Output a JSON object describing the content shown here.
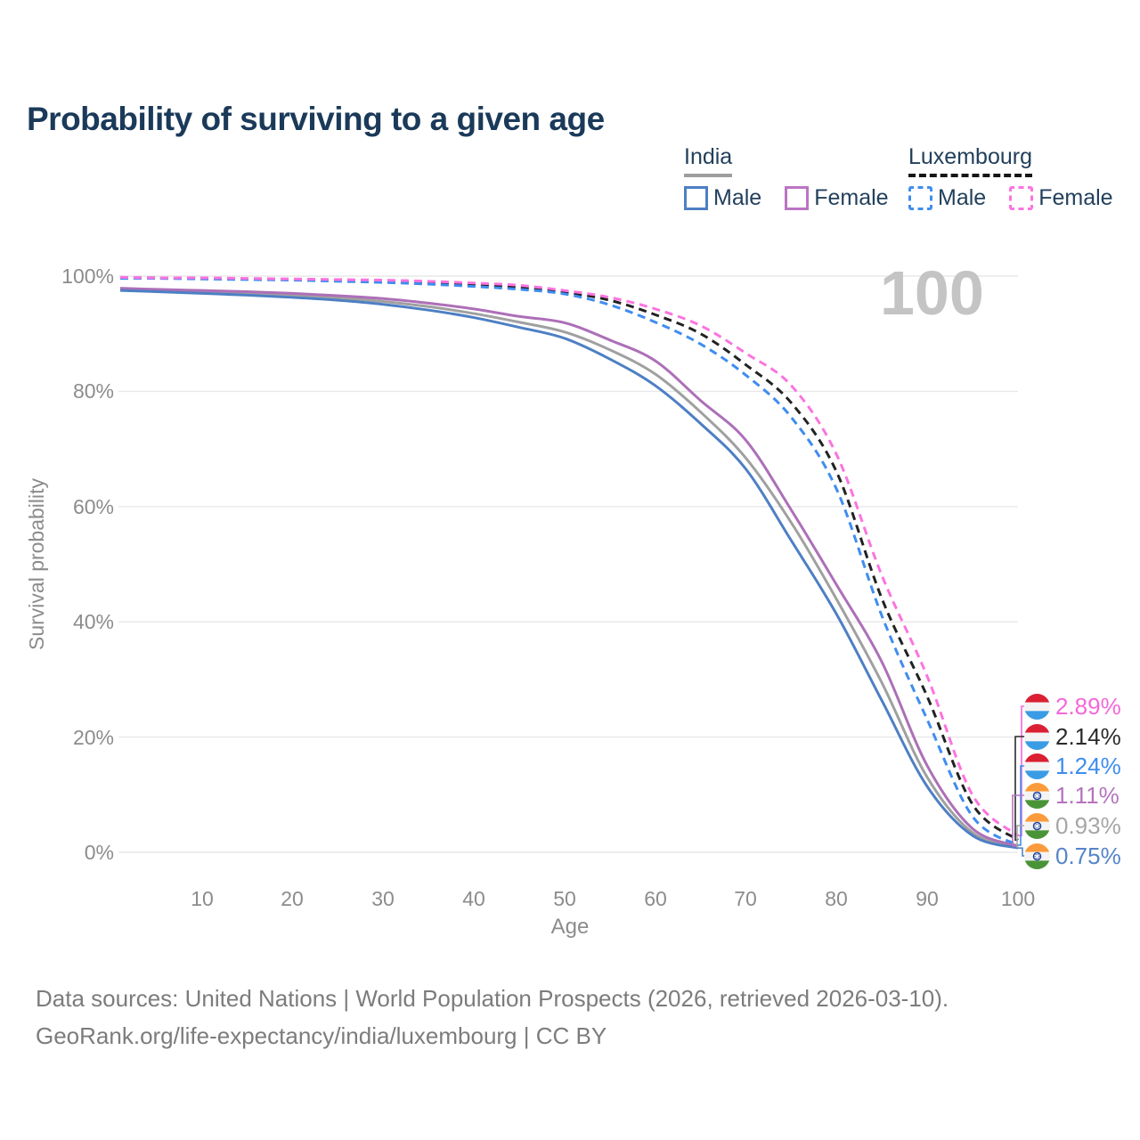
{
  "title": "Probability of surviving to a given age",
  "legend": {
    "groups": [
      {
        "label": "India",
        "items": [
          {
            "label": "Male"
          },
          {
            "label": "Female"
          }
        ]
      },
      {
        "label": "Luxembourg",
        "items": [
          {
            "label": "Male"
          },
          {
            "label": "Female"
          }
        ]
      }
    ]
  },
  "watermark_age": "100",
  "axes": {
    "y_label": "Survival probability",
    "x_label": "Age",
    "y_ticks": [
      "0%",
      "20%",
      "40%",
      "60%",
      "80%",
      "100%"
    ],
    "x_ticks": [
      "10",
      "20",
      "30",
      "40",
      "50",
      "60",
      "70",
      "80",
      "90",
      "100"
    ]
  },
  "end_labels": [
    {
      "series": "Luxembourg Female",
      "flag": "luxembourg",
      "value": "2.89%",
      "color": "#f468d8"
    },
    {
      "series": "Luxembourg Total",
      "flag": "luxembourg",
      "value": "2.14%",
      "color": "#2b2b2b"
    },
    {
      "series": "Luxembourg Male",
      "flag": "luxembourg",
      "value": "1.24%",
      "color": "#3e8df0"
    },
    {
      "series": "India Female",
      "flag": "india",
      "value": "1.11%",
      "color": "#b574bd"
    },
    {
      "series": "India Total",
      "flag": "india",
      "value": "0.93%",
      "color": "#a6a6a6"
    },
    {
      "series": "India Male",
      "flag": "india",
      "value": "0.75%",
      "color": "#5585c8"
    }
  ],
  "footer": {
    "line1": "Data sources: United Nations | World Population Prospects (2026, retrieved 2026-03-10).",
    "line2": "GeoRank.org/life-expectancy/india/luxembourg | CC BY"
  },
  "chart_data": {
    "type": "line",
    "title": "Probability of surviving to a given age",
    "xlabel": "Age",
    "ylabel": "Survival probability",
    "xlim": [
      1,
      100
    ],
    "ylim": [
      0,
      100
    ],
    "grid": "horizontal",
    "legend_position": "top-right",
    "x": [
      1,
      5,
      10,
      15,
      20,
      25,
      30,
      35,
      40,
      45,
      50,
      55,
      60,
      65,
      70,
      75,
      80,
      85,
      90,
      95,
      100
    ],
    "series": [
      {
        "name": "India Male",
        "country": "India",
        "sex": "male",
        "style": "solid",
        "color": "#4d7fc4",
        "values": [
          97.5,
          97.3,
          97.0,
          96.7,
          96.3,
          95.8,
          95.1,
          94.1,
          92.8,
          91.1,
          89.2,
          85.6,
          81.0,
          74.4,
          66.5,
          54.1,
          41.3,
          26.3,
          11.4,
          2.9,
          0.75
        ]
      },
      {
        "name": "India Total",
        "country": "India",
        "sex": "both",
        "style": "solid",
        "color": "#a0a0a0",
        "values": [
          97.7,
          97.5,
          97.3,
          97.0,
          96.7,
          96.2,
          95.6,
          94.7,
          93.5,
          92.0,
          90.3,
          87.2,
          83.0,
          76.4,
          68.4,
          57.2,
          43.9,
          29.4,
          13.0,
          3.4,
          0.93
        ]
      },
      {
        "name": "India Female",
        "country": "India",
        "sex": "female",
        "style": "solid",
        "color": "#ad6fb8",
        "values": [
          97.9,
          97.7,
          97.5,
          97.3,
          97.0,
          96.6,
          96.1,
          95.3,
          94.3,
          93.0,
          91.9,
          88.9,
          85.3,
          78.4,
          71.5,
          59.4,
          46.4,
          33.0,
          15.0,
          4.1,
          1.11
        ]
      },
      {
        "name": "Luxembourg Male",
        "country": "Luxembourg",
        "sex": "male",
        "style": "dashed",
        "color": "#3f8df0",
        "values": [
          99.6,
          99.6,
          99.5,
          99.4,
          99.3,
          99.1,
          98.9,
          98.6,
          98.2,
          97.7,
          96.9,
          95.0,
          92.0,
          88.2,
          82.8,
          75.5,
          63.0,
          41.0,
          23.0,
          6.2,
          1.24
        ]
      },
      {
        "name": "Luxembourg Total",
        "country": "Luxembourg",
        "sex": "both",
        "style": "dashed",
        "color": "#222222",
        "values": [
          99.7,
          99.7,
          99.6,
          99.5,
          99.4,
          99.3,
          99.1,
          98.8,
          98.5,
          98.0,
          97.2,
          95.8,
          93.3,
          90.0,
          84.6,
          78.0,
          66.0,
          44.0,
          27.0,
          8.3,
          2.14
        ]
      },
      {
        "name": "Luxembourg Female",
        "country": "Luxembourg",
        "sex": "female",
        "style": "dashed",
        "color": "#fb74df",
        "values": [
          99.8,
          99.7,
          99.7,
          99.6,
          99.5,
          99.4,
          99.3,
          99.1,
          98.8,
          98.4,
          97.5,
          96.3,
          94.3,
          91.4,
          86.6,
          81.0,
          69.0,
          48.0,
          30.5,
          9.9,
          2.89
        ]
      }
    ]
  }
}
